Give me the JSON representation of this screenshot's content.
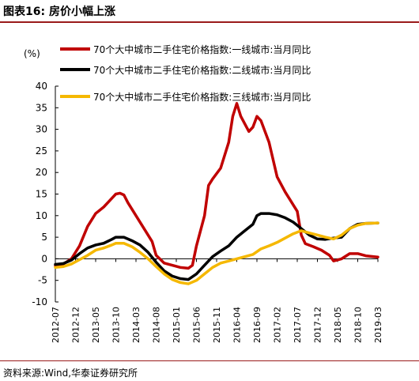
{
  "figure_title": "图表16: 房价小幅上涨",
  "source_note": "资料来源:Wind,华泰证券研究所",
  "chart_data": {
    "type": "line",
    "title": "",
    "ylabel": "(%)",
    "xlabel": "",
    "ylim": [
      -10,
      40
    ],
    "yticks": [
      -10,
      -5,
      0,
      5,
      10,
      15,
      20,
      25,
      30,
      35,
      40
    ],
    "xlim": [
      "2012-07",
      "2019-03"
    ],
    "xticks": [
      "2012-07",
      "2012-12",
      "2013-05",
      "2013-10",
      "2014-03",
      "2014-08",
      "2015-01",
      "2015-06",
      "2015-11",
      "2016-04",
      "2016-09",
      "2017-02",
      "2017-07",
      "2017-12",
      "2018-05",
      "2018-10",
      "2019-03"
    ],
    "grid": false,
    "legend_position": "top",
    "series": [
      {
        "name": "70个大中城市二手住宅价格指数:一线城市:当月同比",
        "color": "#c00000",
        "points": [
          [
            "2012-07",
            -1.6
          ],
          [
            "2012-09",
            -1.2
          ],
          [
            "2012-11",
            0
          ],
          [
            "2013-01",
            3
          ],
          [
            "2013-03",
            7.5
          ],
          [
            "2013-05",
            10.5
          ],
          [
            "2013-07",
            12
          ],
          [
            "2013-09",
            14
          ],
          [
            "2013-10",
            15
          ],
          [
            "2013-11",
            15.2
          ],
          [
            "2013-12",
            14.8
          ],
          [
            "2014-01",
            13
          ],
          [
            "2014-03",
            10
          ],
          [
            "2014-05",
            7
          ],
          [
            "2014-07",
            4
          ],
          [
            "2014-08",
            0.8
          ],
          [
            "2014-10",
            -1
          ],
          [
            "2014-12",
            -1.5
          ],
          [
            "2015-02",
            -2
          ],
          [
            "2015-04",
            -2.2
          ],
          [
            "2015-05",
            -1.5
          ],
          [
            "2015-06",
            3
          ],
          [
            "2015-08",
            10
          ],
          [
            "2015-09",
            17
          ],
          [
            "2015-10",
            18.5
          ],
          [
            "2015-12",
            21
          ],
          [
            "2016-02",
            27
          ],
          [
            "2016-03",
            33
          ],
          [
            "2016-04",
            36
          ],
          [
            "2016-05",
            33
          ],
          [
            "2016-07",
            29.5
          ],
          [
            "2016-08",
            30.5
          ],
          [
            "2016-09",
            33
          ],
          [
            "2016-10",
            32
          ],
          [
            "2016-12",
            27
          ],
          [
            "2017-02",
            19
          ],
          [
            "2017-04",
            15.5
          ],
          [
            "2017-06",
            12.5
          ],
          [
            "2017-07",
            11
          ],
          [
            "2017-08",
            5.5
          ],
          [
            "2017-09",
            3.5
          ],
          [
            "2017-11",
            2.8
          ],
          [
            "2018-01",
            2
          ],
          [
            "2018-03",
            0.8
          ],
          [
            "2018-04",
            -0.5
          ],
          [
            "2018-06",
            0
          ],
          [
            "2018-08",
            1.2
          ],
          [
            "2018-10",
            1.2
          ],
          [
            "2018-12",
            0.7
          ],
          [
            "2019-03",
            0.4
          ]
        ]
      },
      {
        "name": "70个大中城市二手住宅价格指数:二线城市:当月同比",
        "color": "#000000",
        "points": [
          [
            "2012-07",
            -1.3
          ],
          [
            "2012-09",
            -1.1
          ],
          [
            "2012-11",
            -0.3
          ],
          [
            "2013-01",
            1.2
          ],
          [
            "2013-03",
            2.5
          ],
          [
            "2013-05",
            3.2
          ],
          [
            "2013-07",
            3.6
          ],
          [
            "2013-09",
            4.5
          ],
          [
            "2013-10",
            5
          ],
          [
            "2013-12",
            5
          ],
          [
            "2014-02",
            4.2
          ],
          [
            "2014-04",
            3.2
          ],
          [
            "2014-06",
            1.5
          ],
          [
            "2014-08",
            -0.8
          ],
          [
            "2014-10",
            -2.8
          ],
          [
            "2014-12",
            -4
          ],
          [
            "2015-02",
            -4.6
          ],
          [
            "2015-04",
            -4.8
          ],
          [
            "2015-06",
            -3.5
          ],
          [
            "2015-08",
            -1.5
          ],
          [
            "2015-10",
            0.5
          ],
          [
            "2015-12",
            1.8
          ],
          [
            "2016-02",
            3
          ],
          [
            "2016-04",
            5
          ],
          [
            "2016-06",
            6.5
          ],
          [
            "2016-08",
            8
          ],
          [
            "2016-09",
            10
          ],
          [
            "2016-10",
            10.5
          ],
          [
            "2016-12",
            10.5
          ],
          [
            "2017-02",
            10.2
          ],
          [
            "2017-04",
            9.5
          ],
          [
            "2017-06",
            8.5
          ],
          [
            "2017-08",
            7
          ],
          [
            "2017-10",
            5.5
          ],
          [
            "2017-12",
            4.6
          ],
          [
            "2018-02",
            4.5
          ],
          [
            "2018-04",
            4.8
          ],
          [
            "2018-06",
            5
          ],
          [
            "2018-08",
            7
          ],
          [
            "2018-10",
            8
          ],
          [
            "2018-12",
            8.2
          ],
          [
            "2019-03",
            8.3
          ]
        ]
      },
      {
        "name": "70个大中城市二手住宅价格指数:三线城市:当月同比",
        "color": "#f5b800",
        "points": [
          [
            "2012-07",
            -2
          ],
          [
            "2012-09",
            -1.8
          ],
          [
            "2012-11",
            -1.2
          ],
          [
            "2013-01",
            -0.2
          ],
          [
            "2013-03",
            0.8
          ],
          [
            "2013-05",
            2
          ],
          [
            "2013-07",
            2.5
          ],
          [
            "2013-09",
            3.2
          ],
          [
            "2013-10",
            3.6
          ],
          [
            "2013-12",
            3.6
          ],
          [
            "2014-02",
            2.8
          ],
          [
            "2014-04",
            1.5
          ],
          [
            "2014-06",
            0
          ],
          [
            "2014-08",
            -1.8
          ],
          [
            "2014-10",
            -3.5
          ],
          [
            "2014-12",
            -4.8
          ],
          [
            "2015-02",
            -5.5
          ],
          [
            "2015-04",
            -5.8
          ],
          [
            "2015-06",
            -5
          ],
          [
            "2015-08",
            -3.5
          ],
          [
            "2015-10",
            -2
          ],
          [
            "2015-12",
            -1
          ],
          [
            "2016-02",
            -0.5
          ],
          [
            "2016-04",
            0
          ],
          [
            "2016-06",
            0.5
          ],
          [
            "2016-08",
            1
          ],
          [
            "2016-10",
            2.3
          ],
          [
            "2016-12",
            3
          ],
          [
            "2017-02",
            3.8
          ],
          [
            "2017-04",
            4.8
          ],
          [
            "2017-06",
            5.8
          ],
          [
            "2017-08",
            6.5
          ],
          [
            "2017-10",
            6
          ],
          [
            "2017-12",
            5.5
          ],
          [
            "2018-02",
            5
          ],
          [
            "2018-04",
            4.6
          ],
          [
            "2018-06",
            5.5
          ],
          [
            "2018-08",
            7
          ],
          [
            "2018-10",
            7.8
          ],
          [
            "2018-12",
            8.2
          ],
          [
            "2019-03",
            8.3
          ]
        ]
      }
    ]
  }
}
